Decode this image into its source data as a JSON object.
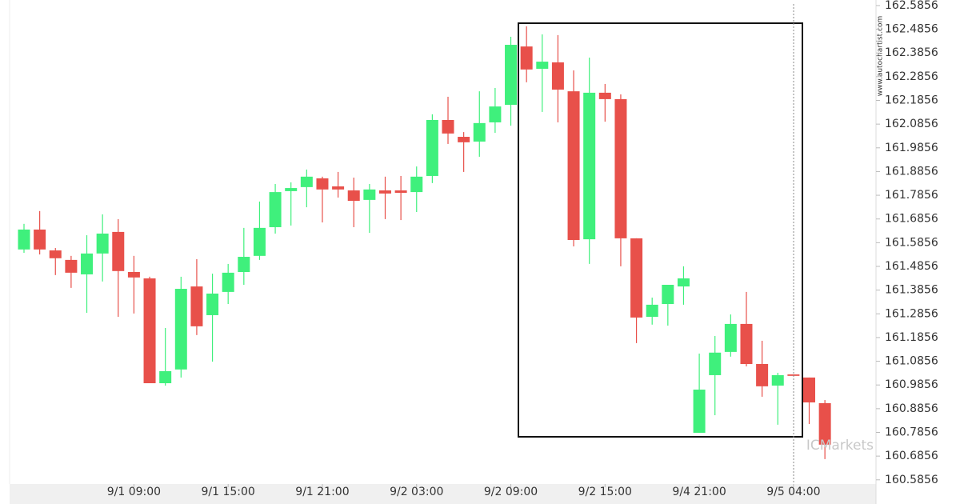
{
  "chart_data": {
    "type": "candlestick",
    "watermark": "www.autochartist.com",
    "logo": "ICMarkets",
    "up_color": "#3ff07c",
    "down_color": "#e8504a",
    "categories": [
      null,
      null,
      null,
      null,
      null,
      null,
      null,
      "9/1 09:00",
      null,
      null,
      null,
      null,
      null,
      "9/1 15:00",
      null,
      null,
      null,
      null,
      null,
      "9/1 21:00",
      null,
      null,
      null,
      null,
      null,
      "9/2 03:00",
      null,
      null,
      null,
      null,
      null,
      "9/2 09:00",
      null,
      null,
      null,
      null,
      null,
      "9/2 15:00",
      null,
      null,
      null,
      null,
      null,
      "9/4 21:00",
      null,
      null,
      null,
      null,
      null,
      "9/5 04:00",
      null,
      null
    ],
    "open": [
      161.557,
      161.641,
      161.553,
      161.513,
      161.452,
      161.54,
      161.631,
      161.462,
      161.435,
      160.993,
      161.051,
      161.401,
      161.28,
      161.378,
      161.462,
      161.53,
      161.651,
      161.803,
      161.82,
      161.857,
      161.823,
      161.806,
      161.766,
      161.806,
      161.806,
      161.799,
      161.867,
      162.103,
      162.032,
      162.012,
      162.093,
      162.167,
      162.413,
      162.319,
      162.346,
      162.224,
      161.6,
      162.218,
      162.191,
      161.604,
      161.273,
      161.327,
      161.401,
      160.784,
      161.027,
      161.125,
      161.243,
      161.074,
      160.983,
      161.03,
      161.017,
      160.909
    ],
    "high": [
      161.665,
      161.719,
      161.563,
      161.53,
      161.617,
      161.705,
      161.685,
      161.53,
      161.442,
      161.226,
      161.442,
      161.516,
      161.455,
      161.496,
      161.648,
      161.759,
      161.833,
      161.84,
      161.894,
      161.864,
      161.884,
      161.86,
      161.833,
      161.864,
      161.867,
      161.907,
      162.127,
      162.201,
      162.052,
      162.224,
      162.238,
      162.454,
      162.498,
      162.464,
      162.461,
      162.312,
      162.366,
      162.255,
      162.211,
      161.604,
      161.354,
      161.408,
      161.486,
      161.118,
      161.192,
      161.283,
      161.378,
      161.172,
      161.037,
      161.03,
      161.017,
      160.922
    ],
    "low": [
      161.543,
      161.536,
      161.449,
      161.395,
      161.29,
      161.422,
      161.273,
      161.287,
      160.993,
      160.983,
      161.017,
      161.196,
      161.084,
      161.327,
      161.408,
      161.513,
      161.624,
      161.658,
      161.735,
      161.671,
      161.776,
      161.651,
      161.627,
      161.685,
      161.681,
      161.715,
      161.837,
      162.002,
      161.884,
      161.948,
      162.049,
      162.079,
      162.262,
      162.137,
      162.093,
      161.57,
      161.496,
      162.096,
      161.486,
      161.162,
      161.24,
      161.236,
      161.324,
      160.784,
      160.858,
      161.105,
      161.064,
      160.936,
      160.818,
      161.024,
      160.821,
      160.673
    ],
    "close": [
      161.641,
      161.557,
      161.52,
      161.459,
      161.54,
      161.624,
      161.466,
      161.439,
      160.993,
      161.044,
      161.391,
      161.233,
      161.371,
      161.459,
      161.526,
      161.648,
      161.799,
      161.816,
      161.864,
      161.81,
      161.81,
      161.762,
      161.81,
      161.793,
      161.796,
      161.864,
      162.103,
      162.046,
      162.009,
      162.09,
      162.16,
      162.42,
      162.316,
      162.349,
      162.231,
      161.597,
      162.218,
      162.191,
      161.604,
      161.27,
      161.324,
      161.408,
      161.435,
      160.966,
      161.122,
      161.243,
      161.074,
      160.98,
      161.027,
      161.024,
      160.912,
      160.734
    ],
    "ylim": [
      160.568,
      162.609
    ],
    "yticks": [
      160.5856,
      160.6856,
      160.7856,
      160.8856,
      160.9856,
      161.0856,
      161.1856,
      161.2856,
      161.3856,
      161.4856,
      161.5856,
      161.6856,
      161.7856,
      161.8856,
      161.9856,
      162.0856,
      162.1856,
      162.2856,
      162.3856,
      162.4856,
      162.5856
    ]
  }
}
